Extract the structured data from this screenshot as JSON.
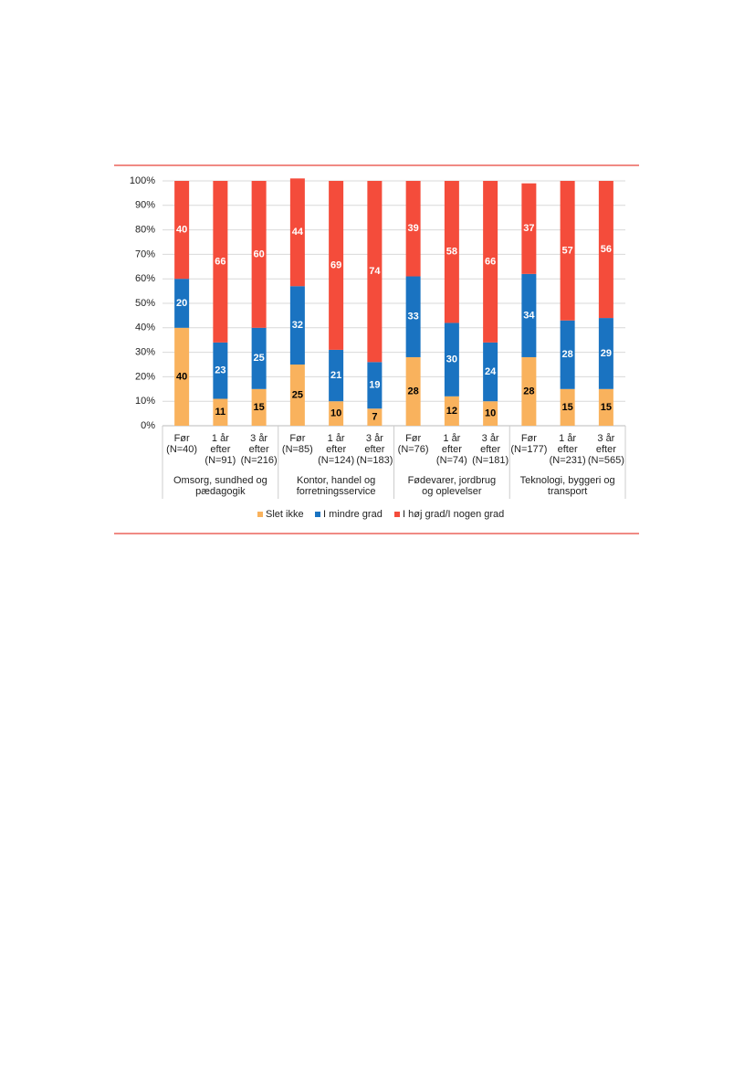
{
  "chart_data": {
    "type": "stacked_bar",
    "categories": [
      "Før (N=40)",
      "1 år efter (N=91)",
      "3 år efter (N=216)",
      "Før (N=85)",
      "1 år efter (N=124)",
      "3 år efter (N=183)",
      "Før (N=76)",
      "1 år efter (N=74)",
      "3 år efter (N=181)",
      "Før (N=177)",
      "1 år efter (N=231)",
      "3 år efter (N=565)"
    ],
    "groups": [
      "Omsorg, sundhed og pædagogik",
      "Kontor, handel og forretningsservice",
      "Fødevarer, jordbrug og oplevelser",
      "Teknologi, byggeri og transport"
    ],
    "series": [
      {
        "name": "Slet ikke",
        "color": "#f9b25d",
        "values": [
          40,
          11,
          15,
          25,
          10,
          7,
          28,
          12,
          10,
          28,
          15,
          15
        ]
      },
      {
        "name": "I mindre grad",
        "color": "#1a73c1",
        "values": [
          20,
          23,
          25,
          32,
          21,
          19,
          33,
          30,
          24,
          34,
          28,
          29
        ]
      },
      {
        "name": "I høj grad/I nogen grad",
        "color": "#f44c3b",
        "values": [
          40,
          66,
          60,
          44,
          69,
          74,
          39,
          58,
          66,
          37,
          57,
          56
        ]
      }
    ],
    "ylim": [
      0,
      100
    ],
    "yticks": [
      {
        "value": 0,
        "label": "0%"
      },
      {
        "value": 10,
        "label": "10%"
      },
      {
        "value": 20,
        "label": "20%"
      },
      {
        "value": 30,
        "label": "30%"
      },
      {
        "value": 40,
        "label": "40%"
      },
      {
        "value": 50,
        "label": "50%"
      },
      {
        "value": 60,
        "label": "60%"
      },
      {
        "value": 70,
        "label": "70%"
      },
      {
        "value": 80,
        "label": "80%"
      },
      {
        "value": 90,
        "label": "90%"
      },
      {
        "value": 100,
        "label": "100%"
      }
    ],
    "grid": true,
    "legend": "bottom"
  }
}
